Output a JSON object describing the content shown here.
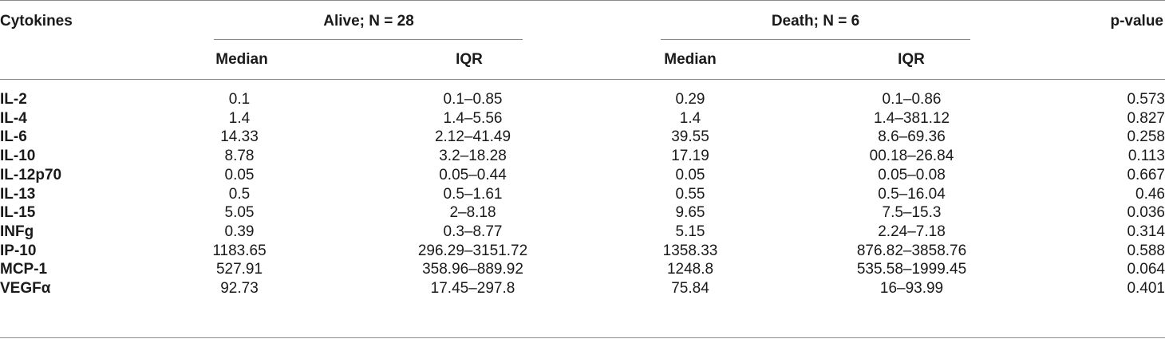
{
  "table": {
    "headers": {
      "cytokines": "Cytokines",
      "alive_group": "Alive; N = 28",
      "death_group": "Death; N = 6",
      "p_value": "p-value",
      "alive_median": "Median",
      "alive_iqr": "IQR",
      "death_median": "Median",
      "death_iqr": "IQR"
    },
    "rows": [
      {
        "cytokine": "IL-2",
        "alive_median": "0.1",
        "alive_iqr": "0.1–0.85",
        "death_median": "0.29",
        "death_iqr": "0.1–0.86",
        "p_value": "0.573"
      },
      {
        "cytokine": "IL-4",
        "alive_median": "1.4",
        "alive_iqr": "1.4–5.56",
        "death_median": "1.4",
        "death_iqr": "1.4–381.12",
        "p_value": "0.827"
      },
      {
        "cytokine": "IL-6",
        "alive_median": "14.33",
        "alive_iqr": "2.12–41.49",
        "death_median": "39.55",
        "death_iqr": "8.6–69.36",
        "p_value": "0.258"
      },
      {
        "cytokine": "IL-10",
        "alive_median": "8.78",
        "alive_iqr": "3.2–18.28",
        "death_median": "17.19",
        "death_iqr": "00.18–26.84",
        "p_value": "0.113"
      },
      {
        "cytokine": "IL-12p70",
        "alive_median": "0.05",
        "alive_iqr": "0.05–0.44",
        "death_median": "0.05",
        "death_iqr": "0.05–0.08",
        "p_value": "0.667"
      },
      {
        "cytokine": "IL-13",
        "alive_median": "0.5",
        "alive_iqr": "0.5–1.61",
        "death_median": "0.55",
        "death_iqr": "0.5–16.04",
        "p_value": "0.46"
      },
      {
        "cytokine": "IL-15",
        "alive_median": "5.05",
        "alive_iqr": "2–8.18",
        "death_median": "9.65",
        "death_iqr": "7.5–15.3",
        "p_value": "0.036"
      },
      {
        "cytokine": "INFg",
        "alive_median": "0.39",
        "alive_iqr": "0.3–8.77",
        "death_median": "5.15",
        "death_iqr": "2.24–7.18",
        "p_value": "0.314"
      },
      {
        "cytokine": "IP-10",
        "alive_median": "1183.65",
        "alive_iqr": "296.29–3151.72",
        "death_median": "1358.33",
        "death_iqr": "876.82–3858.76",
        "p_value": "0.588"
      },
      {
        "cytokine": "MCP-1",
        "alive_median": "527.91",
        "alive_iqr": "358.96–889.92",
        "death_median": "1248.8",
        "death_iqr": "535.58–1999.45",
        "p_value": "0.064"
      },
      {
        "cytokine": "VEGFα",
        "alive_median": "92.73",
        "alive_iqr": "17.45–297.8",
        "death_median": "75.84",
        "death_iqr": "16–93.99",
        "p_value": "0.401"
      }
    ]
  }
}
